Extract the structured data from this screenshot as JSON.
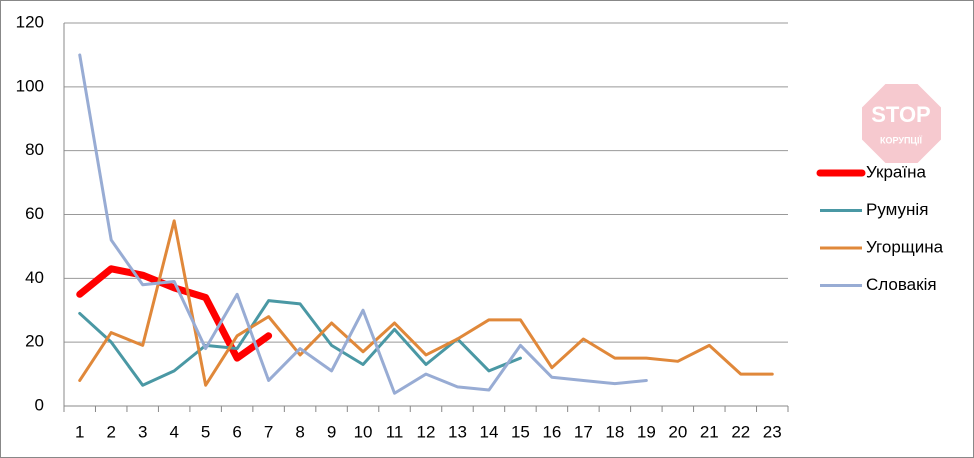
{
  "chart_data": {
    "type": "line",
    "categories": [
      "1",
      "2",
      "3",
      "4",
      "5",
      "6",
      "7",
      "8",
      "9",
      "10",
      "11",
      "12",
      "13",
      "14",
      "15",
      "16",
      "17",
      "18",
      "19",
      "20",
      "21",
      "22",
      "23"
    ],
    "ylim": [
      0,
      120
    ],
    "yticks": [
      0,
      20,
      40,
      60,
      80,
      100,
      120
    ],
    "grid": true,
    "legend": "right",
    "series": [
      {
        "name": "Україна",
        "color": "#ff0000",
        "line_width": 7,
        "values": [
          35,
          43,
          41,
          37,
          34,
          15,
          22,
          null,
          null,
          null,
          null,
          null,
          null,
          null,
          null,
          null,
          null,
          null,
          null,
          null,
          null,
          null,
          null
        ]
      },
      {
        "name": "Румунія",
        "color": "#4a98a4",
        "line_width": 3,
        "values": [
          29,
          20,
          6.5,
          11,
          19,
          18,
          33,
          32,
          19,
          13,
          24,
          13,
          21,
          11,
          15,
          null,
          null,
          null,
          null,
          null,
          null,
          null,
          null
        ]
      },
      {
        "name": "Угорщина",
        "color": "#e0883a",
        "line_width": 3,
        "values": [
          8,
          23,
          19,
          58,
          6.5,
          22,
          28,
          16,
          26,
          17,
          26,
          16,
          21,
          27,
          27,
          12,
          21,
          15,
          15,
          14,
          19,
          10,
          10
        ]
      },
      {
        "name": "Словакія",
        "color": "#98acd4",
        "line_width": 3,
        "values": [
          110,
          52,
          38,
          39,
          18,
          35,
          8,
          18,
          11,
          30,
          4,
          10,
          6,
          5,
          19,
          9,
          8,
          7,
          8,
          null,
          null,
          null,
          null
        ]
      }
    ]
  },
  "watermark": {
    "line1": "STOP",
    "line2": "КОРУПЦІЇ"
  }
}
